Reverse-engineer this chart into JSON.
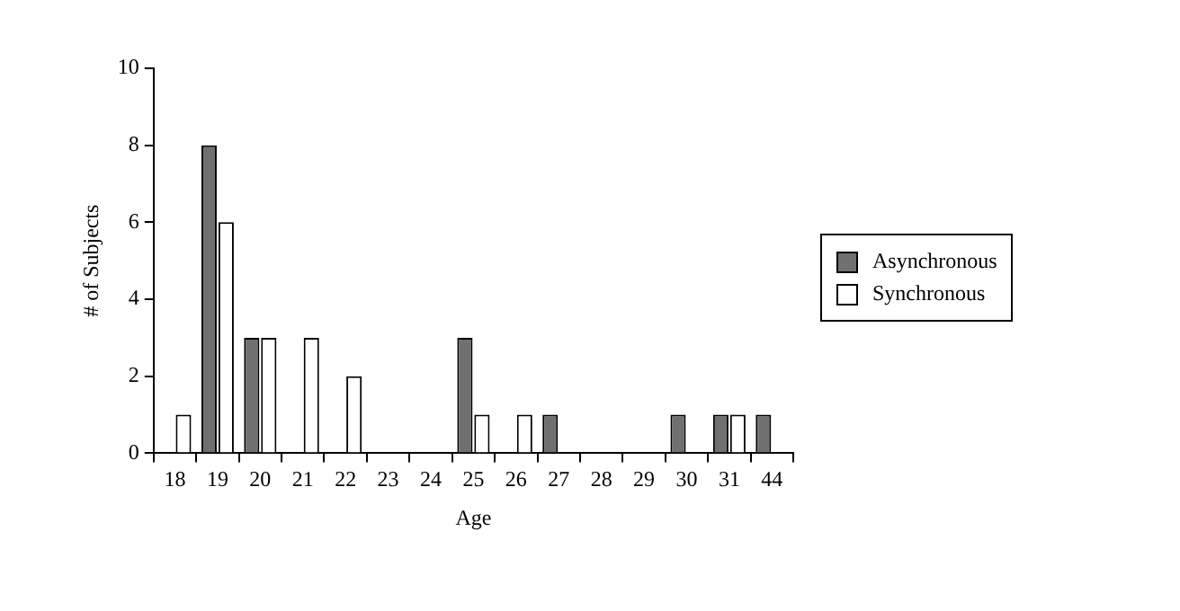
{
  "chart_data": {
    "type": "bar",
    "xlabel": "Age",
    "ylabel": "# of Subjects",
    "categories": [
      "18",
      "19",
      "20",
      "21",
      "22",
      "23",
      "24",
      "25",
      "26",
      "27",
      "28",
      "29",
      "30",
      "31",
      "44"
    ],
    "series": [
      {
        "name": "Asynchronous",
        "color": "#707070",
        "values": [
          0,
          8,
          3,
          0,
          0,
          0,
          0,
          3,
          0,
          1,
          0,
          0,
          1,
          1,
          1
        ]
      },
      {
        "name": "Synchronous",
        "color": "#ffffff",
        "values": [
          1,
          6,
          3,
          3,
          2,
          0,
          0,
          1,
          1,
          0,
          0,
          0,
          0,
          1,
          0
        ]
      }
    ],
    "ylim": [
      0,
      10
    ],
    "yticks": [
      0,
      2,
      4,
      6,
      8,
      10
    ],
    "grid": false,
    "legend": "right"
  }
}
